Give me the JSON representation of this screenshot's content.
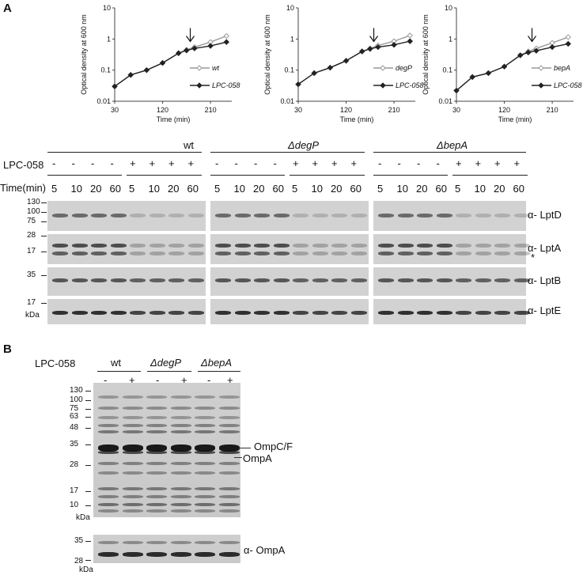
{
  "panelA": {
    "letter": "A",
    "charts": [
      {
        "strain_label": "wt",
        "treated_label": "LPC-058"
      },
      {
        "strain_label": "degP",
        "treated_label": "LPC-058"
      },
      {
        "strain_label": "bepA",
        "treated_label": "LPC-058"
      }
    ],
    "ylabel": "Optical density at 600 nm",
    "xlabel": "Time (min)",
    "yticks": [
      "10",
      "1",
      "0.1",
      "0.01"
    ],
    "xticks": [
      "30",
      "120",
      "210"
    ],
    "blot": {
      "strain_headers": [
        "wt",
        "ΔdegP",
        "ΔbepA"
      ],
      "lpc_label": "LPC-058",
      "lpc_signs": [
        "-",
        "-",
        "-",
        "-",
        "+",
        "+",
        "+",
        "+"
      ],
      "time_label": "Time(min)",
      "times": [
        "5",
        "10",
        "20",
        "60",
        "5",
        "10",
        "20",
        "60"
      ],
      "antibodies": [
        "α- LptD",
        "α- LptA",
        "α- LptB",
        "α- LptE"
      ],
      "asterisk": "*",
      "mw_lptd": [
        "130",
        "100",
        "75"
      ],
      "mw_lpta": [
        "28",
        "17"
      ],
      "mw_lptb": [
        "35"
      ],
      "mw_lpte": [
        "17"
      ],
      "kda": "kDa"
    }
  },
  "panelB": {
    "letter": "B",
    "lpc_label": "LPC-058",
    "strain_headers": [
      "wt",
      "ΔdegP",
      "ΔbepA"
    ],
    "signs": [
      "-",
      "+",
      "-",
      "+",
      "-",
      "+"
    ],
    "mw": [
      "130",
      "100",
      "75",
      "63",
      "48",
      "35",
      "28",
      "17",
      "10"
    ],
    "kda": "kDa",
    "labels": [
      "OmpC/F",
      "OmpA"
    ],
    "lower_mw": [
      "35",
      "28"
    ],
    "lower_label": "α- OmpA"
  },
  "chart_data": [
    {
      "type": "line",
      "xlabel": "Time (min)",
      "ylabel": "Optical density at 600 nm",
      "ylim": [
        0.01,
        10
      ],
      "yscale": "log",
      "x_ticks": [
        30,
        120,
        210
      ],
      "series": [
        {
          "name": "wt",
          "x": [
            30,
            60,
            90,
            120,
            150,
            165,
            180,
            210,
            240
          ],
          "values": [
            0.03,
            0.07,
            0.1,
            0.17,
            0.35,
            0.45,
            0.55,
            0.8,
            1.25
          ]
        },
        {
          "name": "LPC-058",
          "x": [
            30,
            60,
            90,
            120,
            150,
            165,
            180,
            210,
            240
          ],
          "values": [
            0.03,
            0.07,
            0.1,
            0.17,
            0.35,
            0.43,
            0.5,
            0.6,
            0.8
          ]
        }
      ]
    },
    {
      "type": "line",
      "xlabel": "Time (min)",
      "ylabel": "Optical density at 600 nm",
      "ylim": [
        0.01,
        10
      ],
      "yscale": "log",
      "x_ticks": [
        30,
        120,
        210
      ],
      "series": [
        {
          "name": "degP",
          "x": [
            30,
            60,
            90,
            120,
            150,
            165,
            180,
            210,
            240
          ],
          "values": [
            0.035,
            0.08,
            0.12,
            0.2,
            0.4,
            0.5,
            0.62,
            0.85,
            1.3
          ]
        },
        {
          "name": "LPC-058",
          "x": [
            30,
            60,
            90,
            120,
            150,
            165,
            180,
            210,
            240
          ],
          "values": [
            0.035,
            0.08,
            0.12,
            0.2,
            0.4,
            0.48,
            0.55,
            0.65,
            0.85
          ]
        }
      ]
    },
    {
      "type": "line",
      "xlabel": "Time (min)",
      "ylabel": "Optical density at 600 nm",
      "ylim": [
        0.01,
        10
      ],
      "yscale": "log",
      "x_ticks": [
        30,
        120,
        210
      ],
      "series": [
        {
          "name": "bepA",
          "x": [
            30,
            60,
            90,
            120,
            150,
            165,
            180,
            210,
            240
          ],
          "values": [
            0.022,
            0.06,
            0.08,
            0.13,
            0.3,
            0.4,
            0.5,
            0.75,
            1.15
          ]
        },
        {
          "name": "LPC-058",
          "x": [
            30,
            60,
            90,
            120,
            150,
            165,
            180,
            210,
            240
          ],
          "values": [
            0.022,
            0.06,
            0.08,
            0.13,
            0.3,
            0.37,
            0.42,
            0.55,
            0.7
          ]
        }
      ]
    }
  ]
}
